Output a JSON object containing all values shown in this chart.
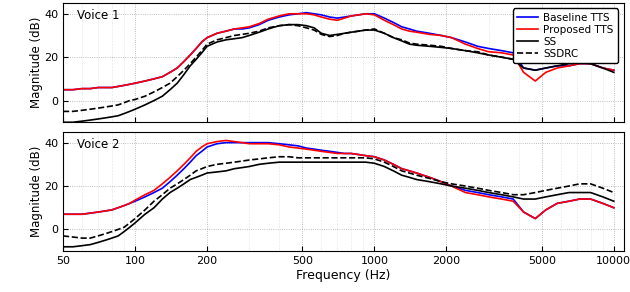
{
  "xlabel": "Frequency (Hz)",
  "ylabel": "Magnitude (dB)",
  "xlim": [
    50,
    11000
  ],
  "ylim": [
    -10,
    45
  ],
  "yticks": [
    0,
    20,
    40
  ],
  "ytick_labels": [
    "0",
    "20",
    "40"
  ],
  "xticks": [
    50,
    100,
    200,
    500,
    1000,
    2000,
    5000,
    10000
  ],
  "xtick_labels": [
    "50",
    "100",
    "200",
    "500",
    "1000",
    "2000",
    "5000",
    "10000"
  ],
  "legend_labels": [
    "Baseline TTS",
    "Proposed TTS",
    "SS",
    "SSDRC"
  ],
  "colors": [
    "#0000ff",
    "#ff0000",
    "#000000",
    "#000000"
  ],
  "linestyles": [
    "-",
    "-",
    "-",
    "--"
  ],
  "linewidths": [
    1.2,
    1.2,
    1.2,
    1.2
  ],
  "voice1_label": "Voice 1",
  "voice2_label": "Voice 2",
  "background_color": "#ffffff",
  "freqs": [
    50,
    55,
    60,
    65,
    70,
    75,
    80,
    85,
    90,
    95,
    100,
    110,
    120,
    130,
    140,
    150,
    160,
    170,
    180,
    190,
    200,
    220,
    240,
    260,
    280,
    300,
    330,
    360,
    400,
    440,
    480,
    520,
    560,
    600,
    650,
    700,
    750,
    800,
    860,
    920,
    1000,
    1100,
    1200,
    1300,
    1400,
    1500,
    1700,
    1900,
    2100,
    2400,
    2700,
    3000,
    3400,
    3800,
    4200,
    4700,
    5200,
    5800,
    6500,
    7200,
    8000,
    9000,
    10000
  ],
  "v1_baseline": [
    5,
    5,
    5.5,
    5.5,
    6,
    6,
    6,
    6.5,
    7,
    7.5,
    8,
    9,
    10,
    11,
    13,
    15,
    18,
    21,
    24,
    27,
    29,
    31,
    32,
    33,
    33,
    33.5,
    35,
    37,
    38.5,
    39.5,
    40,
    40.5,
    40,
    39.5,
    38.5,
    38,
    38.5,
    39,
    39.5,
    40,
    40,
    38,
    36,
    34,
    33,
    32,
    31,
    30,
    29,
    27,
    25,
    24,
    23,
    22,
    15,
    14,
    15,
    16,
    16,
    17,
    17,
    15,
    14
  ],
  "v1_proposed": [
    5,
    5,
    5.5,
    5.5,
    6,
    6,
    6,
    6.5,
    7,
    7.5,
    8,
    9,
    10,
    11,
    13,
    15,
    18,
    21,
    24,
    27,
    29,
    31,
    32,
    33,
    33.5,
    34,
    35.5,
    37.5,
    39,
    40,
    40,
    40,
    39.5,
    38.5,
    37.5,
    37,
    38,
    39,
    39.5,
    40,
    39.5,
    37,
    35,
    33,
    32,
    31.5,
    30.5,
    30,
    29,
    26,
    24,
    22.5,
    22,
    21,
    13,
    9,
    13,
    15,
    16,
    17,
    17,
    15,
    14
  ],
  "v1_ss": [
    -10,
    -10,
    -9.5,
    -9,
    -8.5,
    -8,
    -7.5,
    -7,
    -6,
    -5,
    -4,
    -2,
    0,
    2,
    5,
    8,
    12,
    16,
    19,
    22,
    25,
    27,
    28,
    28.5,
    29,
    30,
    31.5,
    33,
    34.5,
    35,
    35,
    34.5,
    33.5,
    31,
    30,
    30.5,
    31,
    31.5,
    32,
    32.5,
    32.5,
    31,
    29,
    27.5,
    26,
    25.5,
    25,
    24.5,
    24,
    23,
    22,
    21,
    20,
    19,
    15,
    14,
    15,
    16,
    17,
    17.5,
    17,
    15,
    13
  ],
  "v1_ssdrc": [
    -5,
    -5,
    -4.5,
    -4,
    -3.5,
    -3,
    -2.5,
    -2,
    -1,
    0,
    0.5,
    2,
    4,
    6,
    8,
    11,
    14,
    17,
    20,
    23,
    26,
    28,
    29,
    30,
    30.5,
    31,
    32,
    33.5,
    34.5,
    35,
    34.5,
    33.5,
    32.5,
    30.5,
    29.5,
    30,
    31,
    31.5,
    32,
    32.5,
    33,
    31,
    29,
    28,
    26.5,
    26,
    25.5,
    25,
    24,
    23,
    22.5,
    21,
    20,
    19,
    18,
    19,
    20,
    21,
    22,
    23,
    22,
    20,
    18
  ],
  "v2_baseline": [
    7,
    7,
    7,
    7.5,
    8,
    8.5,
    9,
    10,
    11,
    12,
    13,
    15,
    17,
    19,
    22,
    25,
    28,
    31,
    34,
    36,
    38,
    39.5,
    40,
    40,
    40,
    40,
    40,
    40,
    39.5,
    39,
    38.5,
    37.5,
    37,
    36.5,
    36,
    35.5,
    35,
    35,
    34.5,
    34,
    33.5,
    32,
    30,
    28,
    27,
    26,
    24,
    22,
    20,
    18,
    17,
    16,
    15,
    14,
    8,
    5,
    9,
    12,
    13,
    14,
    14,
    12,
    10
  ],
  "v2_proposed": [
    7,
    7,
    7,
    7.5,
    8,
    8.5,
    9,
    10,
    11,
    12,
    13.5,
    16,
    18,
    21,
    24,
    27,
    30,
    33,
    36,
    38,
    39.5,
    40.5,
    41,
    40.5,
    40,
    39.5,
    39.5,
    39.5,
    39,
    38,
    37.5,
    37,
    36.5,
    36,
    35.5,
    35,
    35,
    35,
    34.5,
    34,
    33.5,
    32,
    30,
    28,
    27,
    26,
    24,
    22,
    20,
    17,
    16,
    15,
    14,
    13,
    8,
    5,
    9,
    12,
    13,
    14,
    14,
    12,
    10
  ],
  "v2_ss": [
    -8,
    -8,
    -7.5,
    -7,
    -6,
    -5,
    -4,
    -3,
    -1,
    1,
    3,
    7,
    10,
    14,
    17,
    19,
    21,
    23,
    24,
    25,
    26,
    26.5,
    27,
    28,
    28.5,
    29,
    30,
    30.5,
    31,
    31,
    31,
    31,
    31,
    31,
    31,
    31,
    31,
    31,
    31,
    31,
    30.5,
    29,
    27,
    25,
    24,
    23,
    22,
    21,
    20,
    19,
    18,
    17,
    16,
    15,
    14,
    14,
    15,
    16,
    17,
    17,
    17,
    15,
    13
  ],
  "v2_ssdrc": [
    -3,
    -3.5,
    -4,
    -4,
    -3,
    -2,
    -1,
    0,
    1,
    3,
    5,
    9,
    13,
    16,
    19,
    21,
    23,
    25,
    27,
    28,
    29,
    30,
    30.5,
    31,
    31.5,
    32,
    32.5,
    33,
    33.5,
    33.5,
    33,
    33,
    33,
    33,
    33,
    33,
    33,
    33,
    33,
    33,
    32.5,
    31,
    29,
    27,
    26,
    25,
    23.5,
    22,
    21,
    20,
    19,
    18,
    17,
    16,
    16,
    17,
    18,
    19,
    20,
    21,
    21,
    19,
    17
  ]
}
